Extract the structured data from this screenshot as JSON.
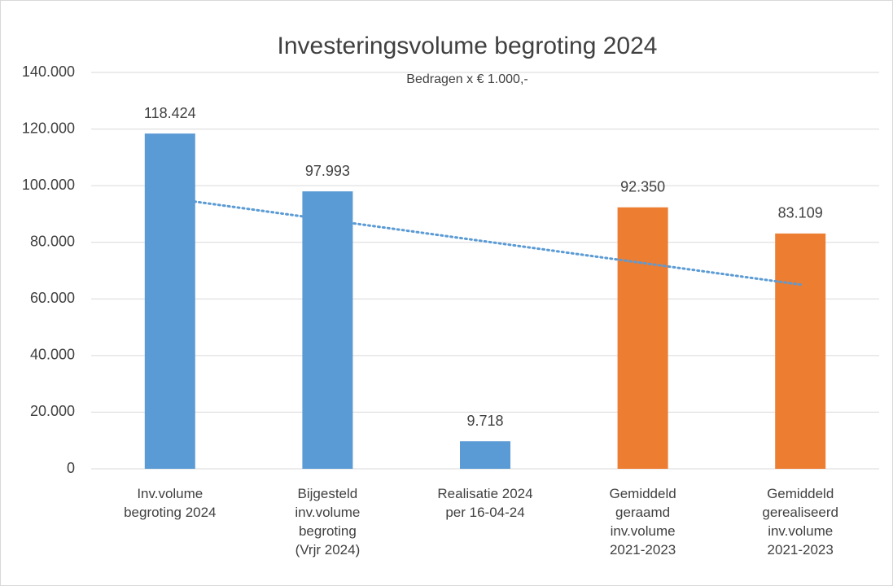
{
  "chart_data": {
    "type": "bar",
    "title": "Investeringsvolume begroting 2024",
    "subtitle": "Bedragen x € 1.000,-",
    "categories": [
      "Inv.volume\nbegroting 2024",
      "Bijgesteld\ninv.volume\nbegroting\n(Vrjr 2024)",
      "Realisatie 2024\nper 16-04-24",
      "Gemiddeld\ngeraamd\ninv.volume\n2021-2023",
      "Gemiddeld\ngerealiseerd\ninv.volume\n2021-2023"
    ],
    "values": [
      118424,
      97993,
      9718,
      92350,
      83109
    ],
    "value_labels": [
      "118.424",
      "97.993",
      "9.718",
      "92.350",
      "83.109"
    ],
    "colors": [
      "#5b9bd5",
      "#5b9bd5",
      "#5b9bd5",
      "#ed7d31",
      "#ed7d31"
    ],
    "ylim": [
      0,
      140000
    ],
    "yticks": [
      0,
      {
        "value": 20000,
        "label": "20.000"
      },
      {
        "value": 40000,
        "label": "40.000"
      },
      {
        "value": 60000,
        "label": "60.000"
      },
      {
        "value": 80000,
        "label": "80.000"
      },
      {
        "value": 100000,
        "label": "100.000"
      },
      {
        "value": 120000,
        "label": "120.000"
      },
      {
        "value": 140000,
        "label": "140.000"
      }
    ],
    "grid": true,
    "trendline": {
      "type": "linear",
      "color": "#5b9bd5"
    }
  }
}
